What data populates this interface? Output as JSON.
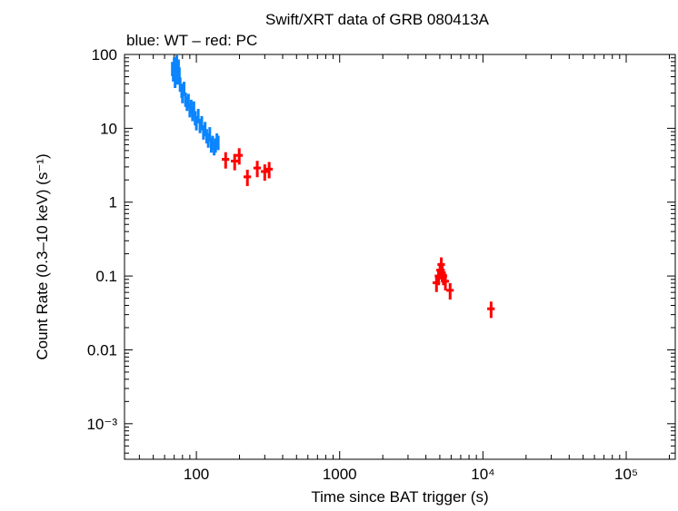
{
  "chart_data": {
    "type": "scatter",
    "title": "Swift/XRT data of GRB 080413A",
    "subtitle": "blue: WT – red: PC",
    "xlabel": "Time since BAT trigger (s)",
    "ylabel": "Count Rate (0.3–10 keV) (s⁻¹)",
    "xscale": "log",
    "yscale": "log",
    "xlim": [
      31.5,
      220000
    ],
    "ylim": [
      0.00033,
      100
    ],
    "x_tick_labels": [
      "100",
      "1000",
      "10⁴",
      "10⁵"
    ],
    "x_tick_values": [
      100,
      1000,
      10000,
      100000
    ],
    "y_tick_labels": [
      "100",
      "10",
      "1",
      "0.1",
      "0.01",
      "10⁻³"
    ],
    "y_tick_values": [
      100,
      10,
      1,
      0.1,
      0.01,
      0.001
    ],
    "grid": false,
    "series": [
      {
        "name": "WT",
        "color": "#0a84ff",
        "x": [
          68,
          69,
          70,
          71,
          72,
          73,
          74,
          75,
          76,
          77,
          79,
          80,
          82,
          84,
          86,
          88,
          90,
          92,
          94,
          96,
          98,
          100,
          103,
          106,
          109,
          112,
          115,
          118,
          121,
          124,
          127,
          130,
          133,
          136,
          139,
          142
        ],
        "y": [
          65,
          55,
          75,
          45,
          60,
          80,
          50,
          70,
          55,
          40,
          33,
          28,
          35,
          25,
          22,
          24,
          18,
          20,
          16,
          19,
          14,
          12,
          15,
          11,
          12,
          9,
          10,
          8,
          7,
          8.5,
          6,
          6.5,
          5.5,
          6,
          7,
          6.5
        ],
        "yerr_frac": 0.22,
        "xerr_frac": 0.012
      },
      {
        "name": "PC",
        "color": "#ff0000",
        "x": [
          160,
          185,
          199,
          227,
          266,
          300,
          322,
          4740,
          4900,
          5020,
          5120,
          5200,
          5300,
          5470,
          5900,
          11400
        ],
        "y": [
          3.8,
          3.6,
          4.3,
          2.2,
          2.9,
          2.6,
          2.8,
          0.081,
          0.1,
          0.12,
          0.143,
          0.11,
          0.1,
          0.085,
          0.064,
          0.036
        ],
        "yerr_frac": 0.25,
        "xerr_frac": 0.06
      }
    ]
  }
}
